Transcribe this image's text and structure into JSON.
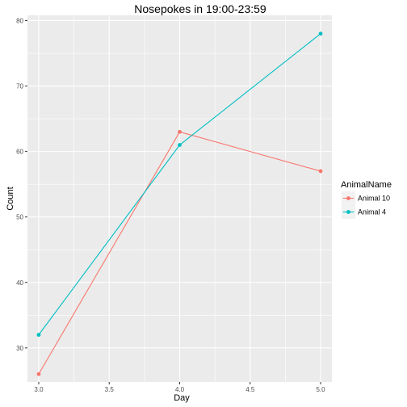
{
  "chart_data": {
    "type": "line",
    "title": "Nosepokes in 19:00-23:59",
    "xlabel": "Day",
    "ylabel": "Count",
    "xlim": [
      2.92,
      5.08
    ],
    "ylim": [
      24.8,
      80.8
    ],
    "x_ticks": [
      3.0,
      3.5,
      4.0,
      4.5,
      5.0
    ],
    "x_tick_labels": [
      "3.0",
      "3.5",
      "4.0",
      "4.5",
      "5.0"
    ],
    "y_ticks": [
      30,
      40,
      50,
      60,
      70,
      80
    ],
    "y_tick_labels": [
      "30",
      "40",
      "50",
      "60",
      "70",
      "80"
    ],
    "grid": true,
    "legend_title": "AnimalName",
    "legend_position": "right",
    "series": [
      {
        "name": "Animal 10",
        "color": "#F8766D",
        "x": [
          3,
          4,
          5
        ],
        "y": [
          26,
          63,
          57
        ]
      },
      {
        "name": "Animal 4",
        "color": "#00BFC4",
        "x": [
          3,
          4,
          5
        ],
        "y": [
          32,
          61,
          78
        ]
      }
    ]
  },
  "colors": {
    "panel_background": "#EBEBEB",
    "grid_major": "#FFFFFF",
    "legend_key_background": "#F2F2F2"
  }
}
